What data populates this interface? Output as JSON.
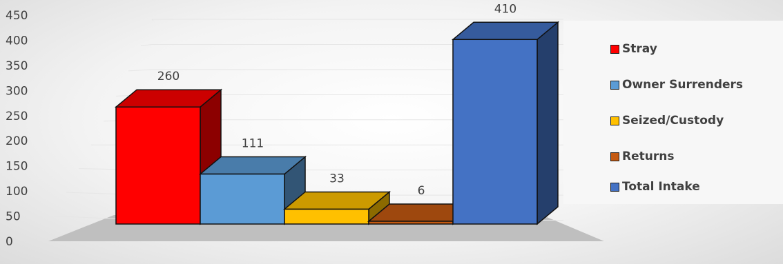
{
  "chart_data": {
    "type": "bar",
    "variant": "3d-column",
    "categories": [
      "Stray",
      "Owner Surrenders",
      "Seized/Custody",
      "Returns",
      "Total Intake"
    ],
    "values": [
      260,
      111,
      33,
      6,
      410
    ],
    "data_labels": [
      "260",
      "111",
      "33",
      "6",
      "410"
    ],
    "colors": [
      "#ff0000",
      "#5b9bd5",
      "#ffc000",
      "#c55a11",
      "#4472c4"
    ],
    "ylim": [
      0,
      450
    ],
    "y_ticks": [
      "0",
      "50",
      "100",
      "150",
      "200",
      "250",
      "300",
      "350",
      "400",
      "450"
    ],
    "grid": true,
    "legend_position": "right",
    "title": "",
    "xlabel": "",
    "ylabel": ""
  },
  "legend": {
    "items": [
      {
        "label": "Stray",
        "color": "#ff0000"
      },
      {
        "label": "Owner Surrenders",
        "color": "#5b9bd5"
      },
      {
        "label": "Seized/Custody",
        "color": "#ffc000"
      },
      {
        "label": "Returns",
        "color": "#c55a11"
      },
      {
        "label": "Total Intake",
        "color": "#4472c4"
      }
    ]
  }
}
